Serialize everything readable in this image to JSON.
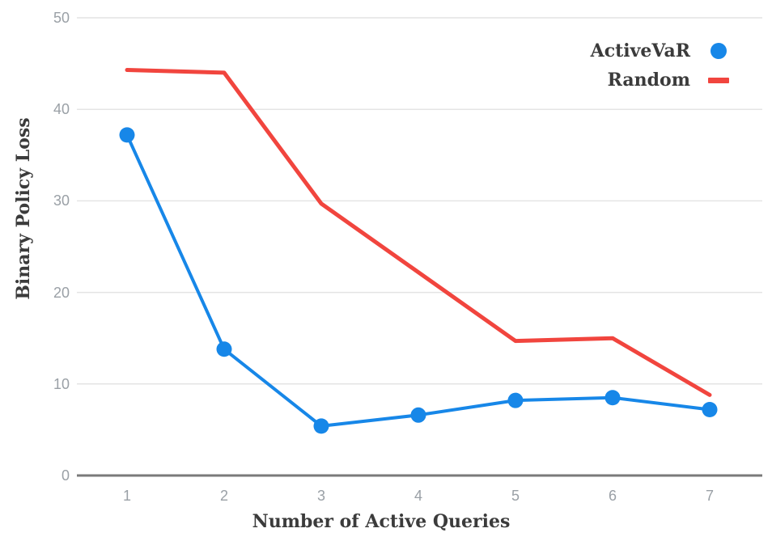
{
  "chart_data": {
    "type": "line",
    "title": "",
    "xlabel": "Number of Active Queries",
    "ylabel": "Binary Policy Loss",
    "x": [
      1,
      2,
      3,
      4,
      5,
      6,
      7
    ],
    "xtick_labels": [
      "1",
      "2",
      "3",
      "4",
      "5",
      "6",
      "7"
    ],
    "yticks": [
      0,
      10,
      20,
      30,
      40,
      50
    ],
    "xlim": [
      1,
      7
    ],
    "ylim": [
      0,
      50
    ],
    "grid": true,
    "legend_position": "top-right",
    "series": [
      {
        "name": "ActiveVaR",
        "color": "#1787e8",
        "marker": "circle",
        "values": [
          37.2,
          13.8,
          5.4,
          6.6,
          8.2,
          8.5,
          7.2
        ]
      },
      {
        "name": "Random",
        "color": "#f1453e",
        "marker": "dash",
        "values": [
          44.3,
          44.0,
          29.7,
          22.2,
          14.7,
          15.0,
          8.8
        ]
      }
    ]
  },
  "colors": {
    "background": "#ffffff",
    "gridline": "#e4e4e4",
    "axis_line": "#7a7a7a",
    "tick_text": "#9aa0a6",
    "title_text": "#3b3b3b",
    "series_blue": "#1787e8",
    "series_red": "#f1453e"
  }
}
